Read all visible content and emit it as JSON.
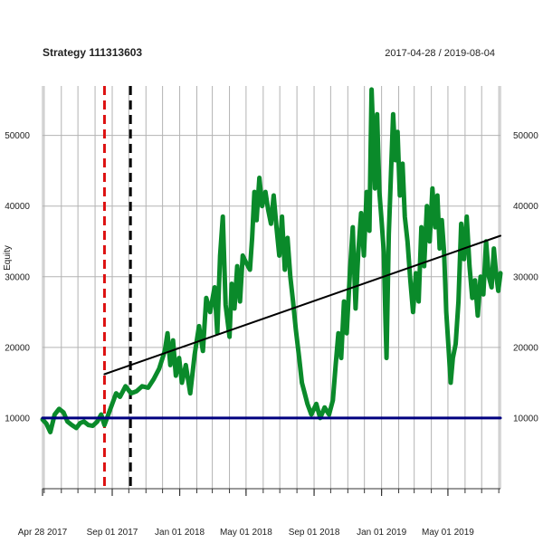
{
  "chart_data": {
    "type": "line",
    "title": "Strategy 111313603",
    "subtitle": "2017-04-28 / 2019-08-04",
    "ylabel": "Equity",
    "xlabel": "",
    "x_range": [
      "2017-04-28",
      "2019-08-04"
    ],
    "ylim": [
      0,
      57000
    ],
    "yticks": [
      10000,
      20000,
      30000,
      40000,
      50000
    ],
    "ytick_labels": [
      "10000",
      "20000",
      "30000",
      "40000",
      "50000"
    ],
    "xtick_labels": [
      {
        "date": "2017-04-28",
        "label": "Apr 28 2017"
      },
      {
        "date": "2017-09-01",
        "label": "Sep 01 2017"
      },
      {
        "date": "2018-01-01",
        "label": "Jan 01 2018"
      },
      {
        "date": "2018-05-01",
        "label": "May 01 2018"
      },
      {
        "date": "2018-09-01",
        "label": "Sep 01 2018"
      },
      {
        "date": "2019-01-01",
        "label": "Jan 01 2019"
      },
      {
        "date": "2019-05-01",
        "label": "May 01 2019"
      }
    ],
    "grid": true,
    "series": [
      {
        "color": "#0a8a2a",
        "points": [
          [
            "2017-04-28",
            9800
          ],
          [
            "2017-05-05",
            9200
          ],
          [
            "2017-05-12",
            8000
          ],
          [
            "2017-05-20",
            10500
          ],
          [
            "2017-05-28",
            11300
          ],
          [
            "2017-06-05",
            10800
          ],
          [
            "2017-06-12",
            9500
          ],
          [
            "2017-06-20",
            9000
          ],
          [
            "2017-06-28",
            8600
          ],
          [
            "2017-07-05",
            9300
          ],
          [
            "2017-07-12",
            9500
          ],
          [
            "2017-07-20",
            9000
          ],
          [
            "2017-07-28",
            8900
          ],
          [
            "2017-08-05",
            9500
          ],
          [
            "2017-08-12",
            10500
          ],
          [
            "2017-08-18",
            9000
          ],
          [
            "2017-08-25",
            10500
          ],
          [
            "2017-09-01",
            12000
          ],
          [
            "2017-09-08",
            13500
          ],
          [
            "2017-09-15",
            13000
          ],
          [
            "2017-09-25",
            14500
          ],
          [
            "2017-10-05",
            13500
          ],
          [
            "2017-10-15",
            13800
          ],
          [
            "2017-10-25",
            14500
          ],
          [
            "2017-11-05",
            14300
          ],
          [
            "2017-11-15",
            15500
          ],
          [
            "2017-11-25",
            17000
          ],
          [
            "2017-12-05",
            19500
          ],
          [
            "2017-12-10",
            22000
          ],
          [
            "2017-12-15",
            17500
          ],
          [
            "2017-12-20",
            21000
          ],
          [
            "2017-12-25",
            16000
          ],
          [
            "2017-12-31",
            18500
          ],
          [
            "2018-01-05",
            15000
          ],
          [
            "2018-01-12",
            17500
          ],
          [
            "2018-01-20",
            13500
          ],
          [
            "2018-01-28",
            19000
          ],
          [
            "2018-02-05",
            23000
          ],
          [
            "2018-02-12",
            19500
          ],
          [
            "2018-02-18",
            27000
          ],
          [
            "2018-02-25",
            25000
          ],
          [
            "2018-03-05",
            28500
          ],
          [
            "2018-03-10",
            22000
          ],
          [
            "2018-03-15",
            33000
          ],
          [
            "2018-03-20",
            38500
          ],
          [
            "2018-03-25",
            26000
          ],
          [
            "2018-04-01",
            21500
          ],
          [
            "2018-04-05",
            29000
          ],
          [
            "2018-04-10",
            25500
          ],
          [
            "2018-04-15",
            31500
          ],
          [
            "2018-04-20",
            26500
          ],
          [
            "2018-04-25",
            33000
          ],
          [
            "2018-05-01",
            32000
          ],
          [
            "2018-05-08",
            31000
          ],
          [
            "2018-05-12",
            35500
          ],
          [
            "2018-05-16",
            42000
          ],
          [
            "2018-05-20",
            38000
          ],
          [
            "2018-05-25",
            44000
          ],
          [
            "2018-05-30",
            40000
          ],
          [
            "2018-06-05",
            42000
          ],
          [
            "2018-06-10",
            39500
          ],
          [
            "2018-06-15",
            37500
          ],
          [
            "2018-06-20",
            41500
          ],
          [
            "2018-06-25",
            37000
          ],
          [
            "2018-06-30",
            33000
          ],
          [
            "2018-07-05",
            38500
          ],
          [
            "2018-07-10",
            31000
          ],
          [
            "2018-07-15",
            35500
          ],
          [
            "2018-07-20",
            30000
          ],
          [
            "2018-07-25",
            26500
          ],
          [
            "2018-07-30",
            22500
          ],
          [
            "2018-08-05",
            18500
          ],
          [
            "2018-08-10",
            15000
          ],
          [
            "2018-08-15",
            13500
          ],
          [
            "2018-08-20",
            12000
          ],
          [
            "2018-08-27",
            10500
          ],
          [
            "2018-09-05",
            12000
          ],
          [
            "2018-09-12",
            10000
          ],
          [
            "2018-09-20",
            11500
          ],
          [
            "2018-09-28",
            10500
          ],
          [
            "2018-10-05",
            12500
          ],
          [
            "2018-10-10",
            17500
          ],
          [
            "2018-10-15",
            22000
          ],
          [
            "2018-10-20",
            18500
          ],
          [
            "2018-10-25",
            26500
          ],
          [
            "2018-10-30",
            22000
          ],
          [
            "2018-11-05",
            31000
          ],
          [
            "2018-11-10",
            37000
          ],
          [
            "2018-11-15",
            25500
          ],
          [
            "2018-11-20",
            33500
          ],
          [
            "2018-11-25",
            39000
          ],
          [
            "2018-11-30",
            33000
          ],
          [
            "2018-12-05",
            42000
          ],
          [
            "2018-12-10",
            36500
          ],
          [
            "2018-12-12",
            47000
          ],
          [
            "2018-12-14",
            56500
          ],
          [
            "2018-12-17",
            50000
          ],
          [
            "2018-12-20",
            42500
          ],
          [
            "2018-12-24",
            53000
          ],
          [
            "2018-12-28",
            42000
          ],
          [
            "2019-01-01",
            38000
          ],
          [
            "2019-01-05",
            33500
          ],
          [
            "2019-01-08",
            24000
          ],
          [
            "2019-01-10",
            18500
          ],
          [
            "2019-01-14",
            36000
          ],
          [
            "2019-01-18",
            44500
          ],
          [
            "2019-01-22",
            53000
          ],
          [
            "2019-01-26",
            46500
          ],
          [
            "2019-01-30",
            50500
          ],
          [
            "2019-02-03",
            41500
          ],
          [
            "2019-02-08",
            46000
          ],
          [
            "2019-02-12",
            38500
          ],
          [
            "2019-02-17",
            35000
          ],
          [
            "2019-02-22",
            29500
          ],
          [
            "2019-02-27",
            25000
          ],
          [
            "2019-03-04",
            30500
          ],
          [
            "2019-03-09",
            26500
          ],
          [
            "2019-03-14",
            37000
          ],
          [
            "2019-03-19",
            31500
          ],
          [
            "2019-03-24",
            40000
          ],
          [
            "2019-03-29",
            35000
          ],
          [
            "2019-04-03",
            42500
          ],
          [
            "2019-04-08",
            37000
          ],
          [
            "2019-04-12",
            41500
          ],
          [
            "2019-04-16",
            34000
          ],
          [
            "2019-04-20",
            38000
          ],
          [
            "2019-04-24",
            33500
          ],
          [
            "2019-04-28",
            25000
          ],
          [
            "2019-05-02",
            20000
          ],
          [
            "2019-05-06",
            15000
          ],
          [
            "2019-05-10",
            18500
          ],
          [
            "2019-05-15",
            20500
          ],
          [
            "2019-05-20",
            26500
          ],
          [
            "2019-05-25",
            37500
          ],
          [
            "2019-05-30",
            32500
          ],
          [
            "2019-06-04",
            38500
          ],
          [
            "2019-06-09",
            31500
          ],
          [
            "2019-06-14",
            27000
          ],
          [
            "2019-06-19",
            29500
          ],
          [
            "2019-06-24",
            24500
          ],
          [
            "2019-06-29",
            30000
          ],
          [
            "2019-07-04",
            27500
          ],
          [
            "2019-07-09",
            35000
          ],
          [
            "2019-07-14",
            30000
          ],
          [
            "2019-07-19",
            28500
          ],
          [
            "2019-07-23",
            34000
          ],
          [
            "2019-07-27",
            30500
          ],
          [
            "2019-07-31",
            28000
          ],
          [
            "2019-08-04",
            30500
          ]
        ]
      },
      {
        "color": "#000000",
        "points": [
          [
            "2017-08-18",
            16200
          ],
          [
            "2019-08-04",
            35800
          ]
        ]
      },
      {
        "color": "#000080",
        "points": [
          [
            "2017-04-28",
            10000
          ],
          [
            "2019-08-04",
            10000
          ]
        ]
      }
    ],
    "vlines": [
      {
        "date": "2017-08-18",
        "color": "#dd1111",
        "style": "dashed"
      },
      {
        "date": "2017-10-04",
        "color": "#000000",
        "style": "dashed"
      }
    ]
  }
}
